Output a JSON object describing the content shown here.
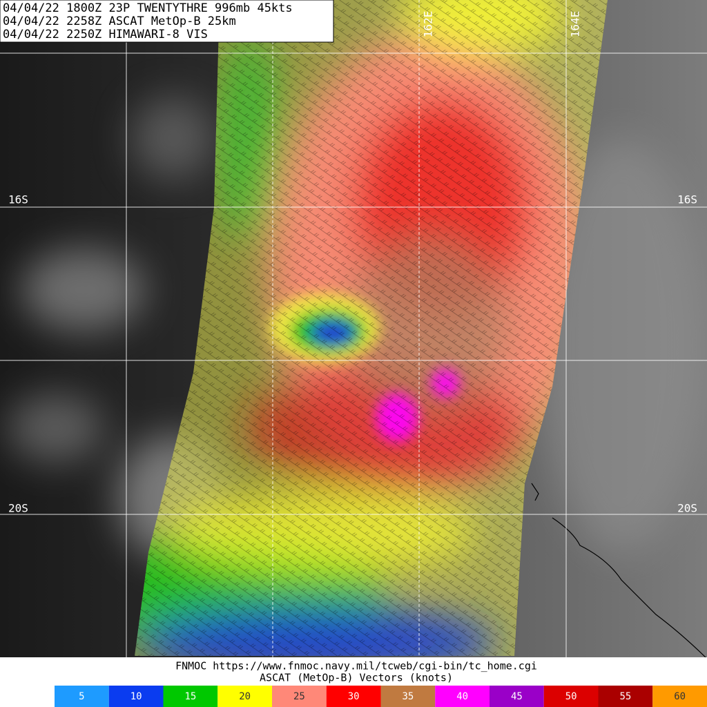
{
  "header": {
    "lines": [
      "04/04/22 1800Z  23P TWENTYTHRE 996mb 45kts",
      "04/04/22 2258Z  ASCAT MetOp-B 25km",
      "04/04/22 2250Z  HIMAWARI-8 VIS"
    ]
  },
  "grid": {
    "lat_labels": [
      "16S",
      "20S"
    ],
    "lon_labels": [
      "162E",
      "164E"
    ]
  },
  "footer": {
    "credit": "FNMOC https://www.fnmoc.navy.mil/tcweb/cgi-bin/tc_home.cgi",
    "caption": "ASCAT (MetOp-B) Vectors (knots)"
  },
  "legend": {
    "items": [
      {
        "value": 5,
        "color": "#1e9bff"
      },
      {
        "value": 10,
        "color": "#0a3cf0"
      },
      {
        "value": 15,
        "color": "#00c800"
      },
      {
        "value": 20,
        "color": "#ffff00"
      },
      {
        "value": 25,
        "color": "#ff8878"
      },
      {
        "value": 30,
        "color": "#ff0000"
      },
      {
        "value": 35,
        "color": "#c07a40"
      },
      {
        "value": 40,
        "color": "#ff00ff"
      },
      {
        "value": 45,
        "color": "#9a00c8"
      },
      {
        "value": 50,
        "color": "#dc0000"
      },
      {
        "value": 55,
        "color": "#aa0000"
      },
      {
        "value": 60,
        "color": "#ff9a00"
      }
    ]
  }
}
